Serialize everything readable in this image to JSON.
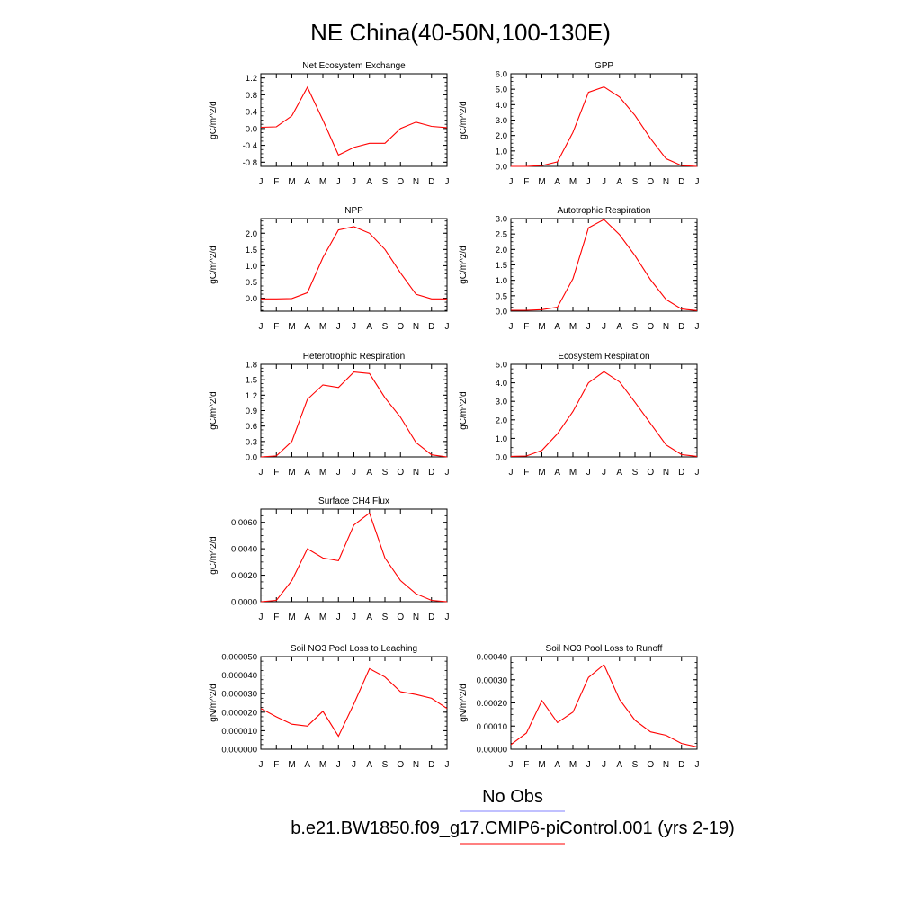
{
  "page_title": "NE China(40-50N,100-130E)",
  "colors": {
    "model_line": "#ff0000",
    "obs_line": "#8080ff",
    "axis": "#000000"
  },
  "legend": {
    "obs_label": "No Obs",
    "model_label": "b.e21.BW1850.f09_g17.CMIP6-piControl.001 (yrs 2-19)"
  },
  "chart_data": [
    {
      "type": "line",
      "title": "Net Ecosystem Exchange",
      "ylabel": "gC/m^2/d",
      "xlabel": "",
      "categories": [
        "J",
        "F",
        "M",
        "A",
        "M",
        "J",
        "J",
        "A",
        "S",
        "O",
        "N",
        "D",
        "J"
      ],
      "ylim": [
        -0.9,
        1.3
      ],
      "yticks": [
        -0.8,
        -0.4,
        0.0,
        0.4,
        0.8,
        1.2
      ],
      "ytick_labels": [
        "-0.8",
        "-0.4",
        "0.0",
        "0.4",
        "0.8",
        "1.2"
      ],
      "series": [
        {
          "values": [
            0.03,
            0.04,
            0.3,
            0.98,
            0.2,
            -0.63,
            -0.45,
            -0.35,
            -0.35,
            0.0,
            0.15,
            0.05,
            0.02
          ]
        }
      ]
    },
    {
      "type": "line",
      "title": "GPP",
      "ylabel": "gC/m^2/d",
      "xlabel": "",
      "categories": [
        "J",
        "F",
        "M",
        "A",
        "M",
        "J",
        "J",
        "A",
        "S",
        "O",
        "N",
        "D",
        "J"
      ],
      "ylim": [
        0,
        6.0
      ],
      "yticks": [
        0.0,
        1.0,
        2.0,
        3.0,
        4.0,
        5.0,
        6.0
      ],
      "ytick_labels": [
        "0.0",
        "1.0",
        "2.0",
        "3.0",
        "4.0",
        "5.0",
        "6.0"
      ],
      "series": [
        {
          "values": [
            0.0,
            0.0,
            0.05,
            0.3,
            2.2,
            4.8,
            5.15,
            4.5,
            3.3,
            1.8,
            0.5,
            0.05,
            0.0
          ]
        }
      ]
    },
    {
      "type": "line",
      "title": "NPP",
      "ylabel": "gC/m^2/d",
      "xlabel": "",
      "categories": [
        "J",
        "F",
        "M",
        "A",
        "M",
        "J",
        "J",
        "A",
        "S",
        "O",
        "N",
        "D",
        "J"
      ],
      "ylim": [
        -0.4,
        2.45
      ],
      "yticks": [
        0.0,
        0.5,
        1.0,
        1.5,
        2.0
      ],
      "ytick_labels": [
        "0.0",
        "0.5",
        "1.0",
        "1.5",
        "2.0"
      ],
      "series": [
        {
          "values": [
            -0.02,
            -0.02,
            -0.01,
            0.17,
            1.25,
            2.1,
            2.2,
            2.0,
            1.5,
            0.78,
            0.12,
            -0.02,
            -0.02
          ]
        }
      ]
    },
    {
      "type": "line",
      "title": "Autotrophic Respiration",
      "ylabel": "gC/m^2/d",
      "xlabel": "",
      "categories": [
        "J",
        "F",
        "M",
        "A",
        "M",
        "J",
        "J",
        "A",
        "S",
        "O",
        "N",
        "D",
        "J"
      ],
      "ylim": [
        0,
        3.0
      ],
      "yticks": [
        0.0,
        0.5,
        1.0,
        1.5,
        2.0,
        2.5,
        3.0
      ],
      "ytick_labels": [
        "0.0",
        "0.5",
        "1.0",
        "1.5",
        "2.0",
        "2.5",
        "3.0"
      ],
      "series": [
        {
          "values": [
            0.03,
            0.03,
            0.05,
            0.13,
            1.05,
            2.7,
            2.97,
            2.48,
            1.8,
            1.02,
            0.38,
            0.07,
            0.02
          ]
        }
      ]
    },
    {
      "type": "line",
      "title": "Heterotrophic Respiration",
      "ylabel": "gC/m^2/d",
      "xlabel": "",
      "categories": [
        "J",
        "F",
        "M",
        "A",
        "M",
        "J",
        "J",
        "A",
        "S",
        "O",
        "N",
        "D",
        "J"
      ],
      "ylim": [
        0,
        1.8
      ],
      "yticks": [
        0.0,
        0.3,
        0.6,
        0.9,
        1.2,
        1.5,
        1.8
      ],
      "ytick_labels": [
        "0.0",
        "0.3",
        "0.6",
        "0.9",
        "1.2",
        "1.5",
        "1.8"
      ],
      "series": [
        {
          "values": [
            0.0,
            0.02,
            0.3,
            1.12,
            1.4,
            1.35,
            1.65,
            1.62,
            1.15,
            0.77,
            0.28,
            0.04,
            0.0
          ]
        }
      ]
    },
    {
      "type": "line",
      "title": "Ecosystem Respiration",
      "ylabel": "gC/m^2/d",
      "xlabel": "",
      "categories": [
        "J",
        "F",
        "M",
        "A",
        "M",
        "J",
        "J",
        "A",
        "S",
        "O",
        "N",
        "D",
        "J"
      ],
      "ylim": [
        0,
        5.0
      ],
      "yticks": [
        0.0,
        1.0,
        2.0,
        3.0,
        4.0,
        5.0
      ],
      "ytick_labels": [
        "0.0",
        "1.0",
        "2.0",
        "3.0",
        "4.0",
        "5.0"
      ],
      "series": [
        {
          "values": [
            0.03,
            0.05,
            0.35,
            1.25,
            2.45,
            4.0,
            4.6,
            4.05,
            2.95,
            1.8,
            0.65,
            0.12,
            0.03
          ]
        }
      ]
    },
    {
      "type": "line",
      "title": "Surface CH4 Flux",
      "ylabel": "gC/m^2/d",
      "xlabel": "",
      "categories": [
        "J",
        "F",
        "M",
        "A",
        "M",
        "J",
        "J",
        "A",
        "S",
        "O",
        "N",
        "D",
        "J"
      ],
      "ylim": [
        0,
        0.007
      ],
      "yticks": [
        0.0,
        0.002,
        0.004,
        0.006
      ],
      "ytick_labels": [
        "0.0000",
        "0.0020",
        "0.0040",
        "0.0060"
      ],
      "series": [
        {
          "values": [
            0.0,
            0.0001,
            0.0016,
            0.004,
            0.0033,
            0.0031,
            0.0058,
            0.0067,
            0.0033,
            0.0016,
            0.0006,
            0.0001,
            0.0
          ]
        }
      ]
    },
    {
      "type": "line",
      "title": "Soil NO3 Pool Loss to Leaching",
      "ylabel": "gN/m^2/d",
      "xlabel": "",
      "categories": [
        "J",
        "F",
        "M",
        "A",
        "M",
        "J",
        "J",
        "A",
        "S",
        "O",
        "N",
        "D",
        "J"
      ],
      "ylim": [
        0,
        5e-05
      ],
      "yticks": [
        0.0,
        1e-05,
        2e-05,
        3e-05,
        4e-05,
        5e-05
      ],
      "ytick_labels": [
        "0.000000",
        "0.000010",
        "0.000020",
        "0.000030",
        "0.000040",
        "0.000050"
      ],
      "series": [
        {
          "values": [
            2.2e-05,
            1.75e-05,
            1.35e-05,
            1.25e-05,
            2.05e-05,
            7e-06,
            2.45e-05,
            4.35e-05,
            3.9e-05,
            3.1e-05,
            2.95e-05,
            2.75e-05,
            2.2e-05
          ]
        }
      ]
    },
    {
      "type": "line",
      "title": "Soil NO3 Pool Loss to Runoff",
      "ylabel": "gN/m^2/d",
      "xlabel": "",
      "categories": [
        "J",
        "F",
        "M",
        "A",
        "M",
        "J",
        "J",
        "A",
        "S",
        "O",
        "N",
        "D",
        "J"
      ],
      "ylim": [
        0,
        0.0004
      ],
      "yticks": [
        0.0,
        0.0001,
        0.0002,
        0.0003,
        0.0004
      ],
      "ytick_labels": [
        "0.00000",
        "0.00010",
        "0.00020",
        "0.00030",
        "0.00040"
      ],
      "series": [
        {
          "values": [
            2e-05,
            7e-05,
            0.00021,
            0.000115,
            0.00016,
            0.00031,
            0.000365,
            0.000215,
            0.000125,
            7.5e-05,
            6e-05,
            2.5e-05,
            1e-05
          ]
        }
      ]
    }
  ]
}
